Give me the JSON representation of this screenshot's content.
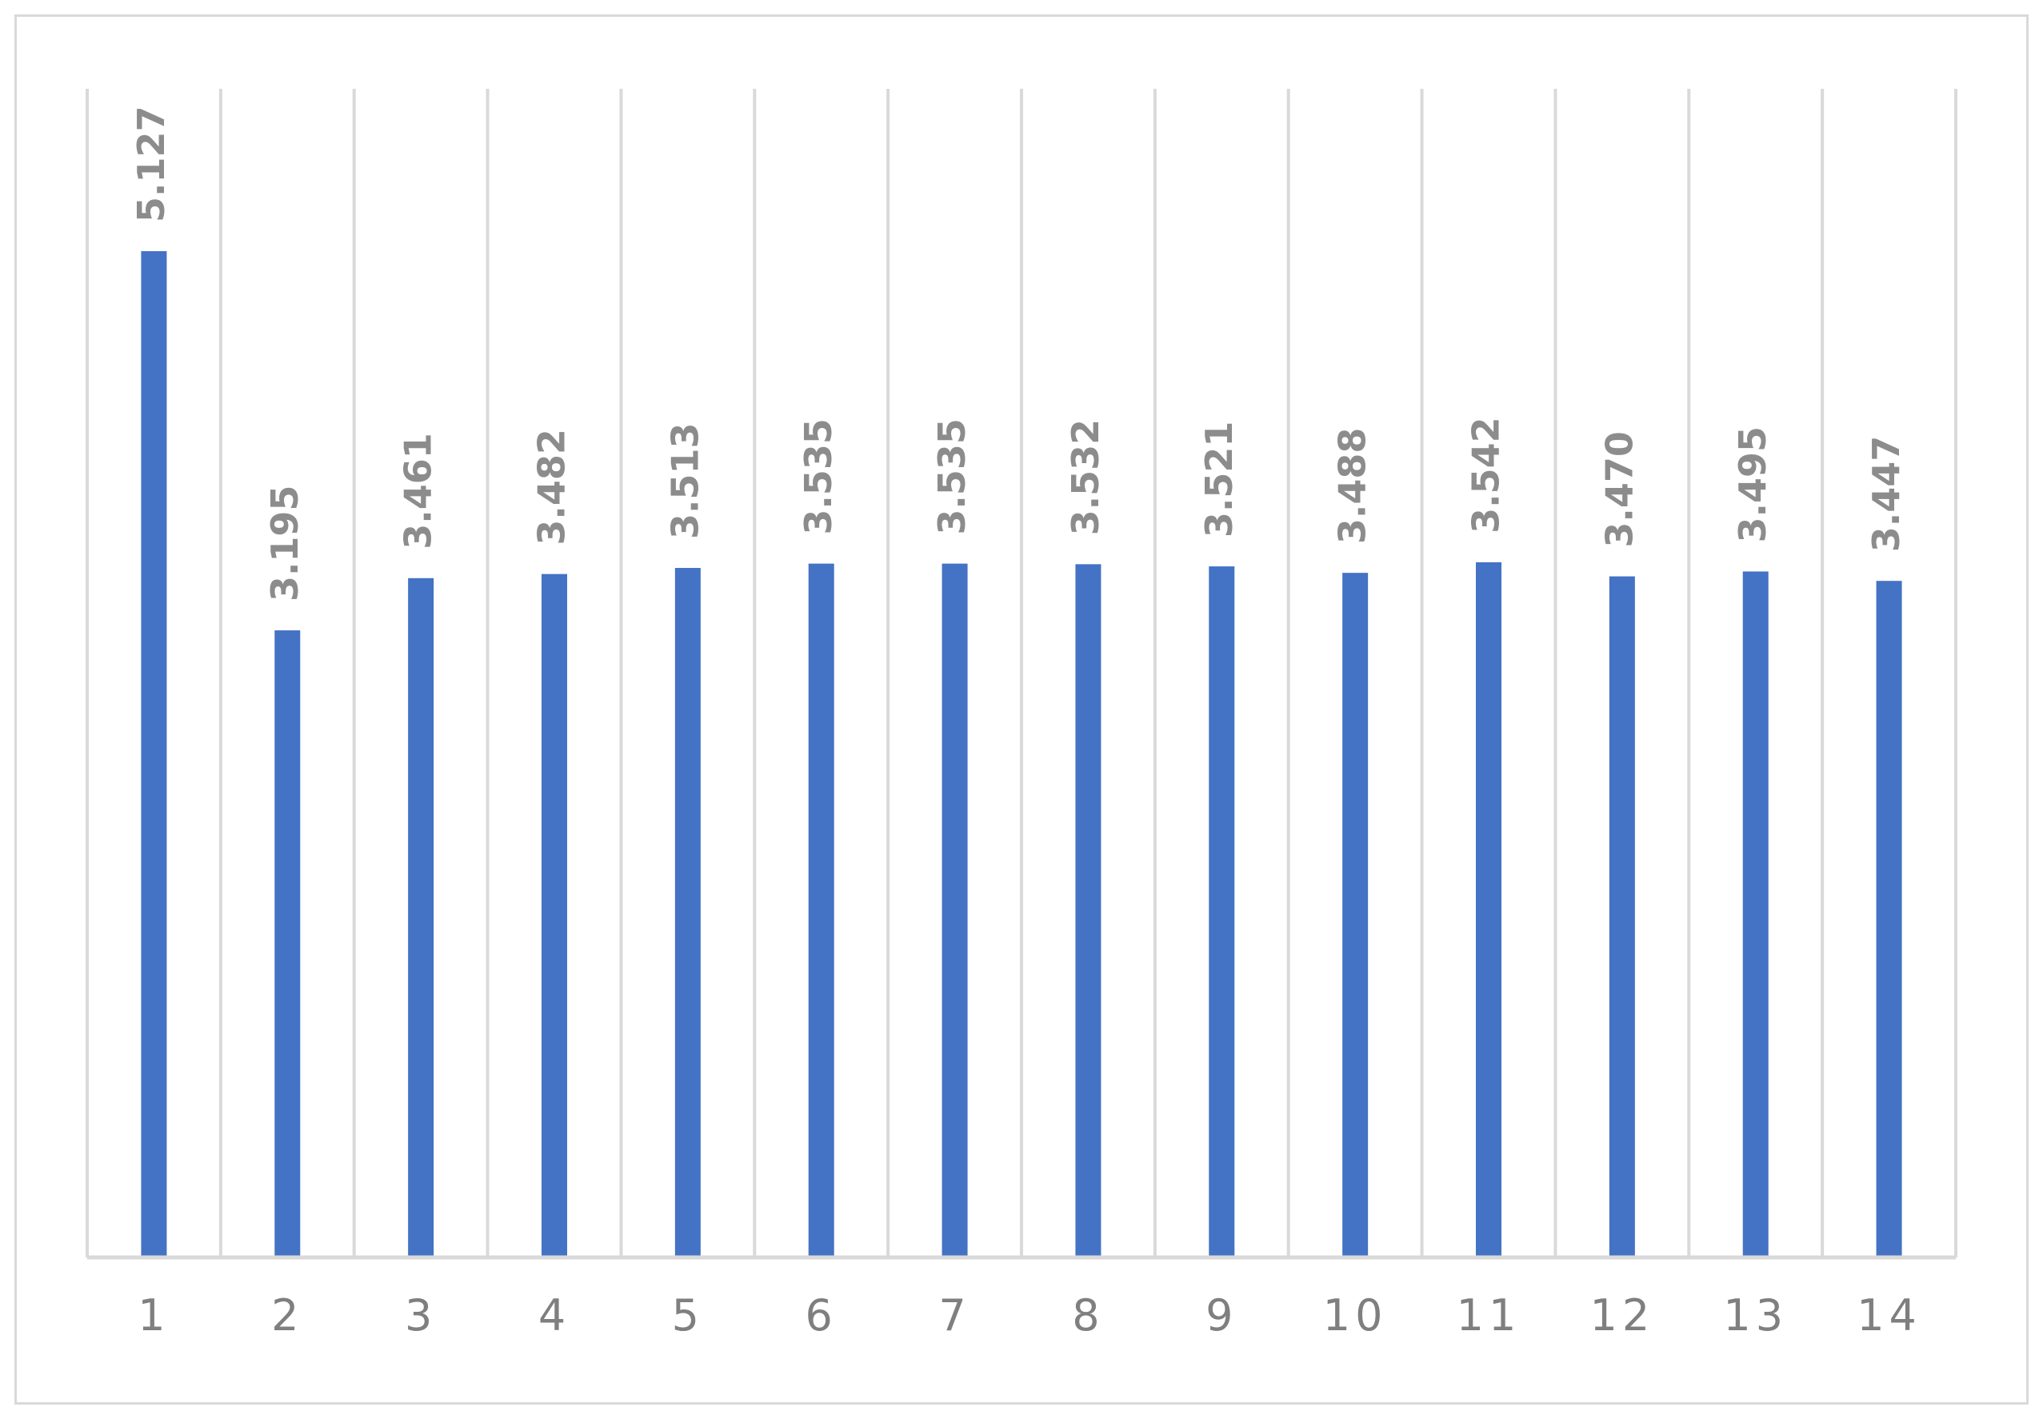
{
  "chart_data": {
    "type": "bar",
    "categories": [
      "1",
      "2",
      "3",
      "4",
      "5",
      "6",
      "7",
      "8",
      "9",
      "10",
      "11",
      "12",
      "13",
      "14"
    ],
    "values": [
      5.127,
      3.195,
      3.461,
      3.482,
      3.513,
      3.535,
      3.535,
      3.532,
      3.521,
      3.488,
      3.542,
      3.47,
      3.495,
      3.447
    ],
    "data_labels": [
      "5.127",
      "3.195",
      "3.461",
      "3.482",
      "3.513",
      "3.535",
      "3.535",
      "3.532",
      "3.521",
      "3.488",
      "3.542",
      "3.470",
      "3.495",
      "3.447"
    ],
    "xlabel": "",
    "ylabel": "",
    "ylim": [
      0,
      6
    ],
    "grid": "vertical",
    "legend": "none",
    "colors": {
      "bar": "#4472c4",
      "gridline": "#d9d9d9",
      "data_label": "#8c8c8c",
      "tick_label": "#7f7f7f"
    }
  }
}
